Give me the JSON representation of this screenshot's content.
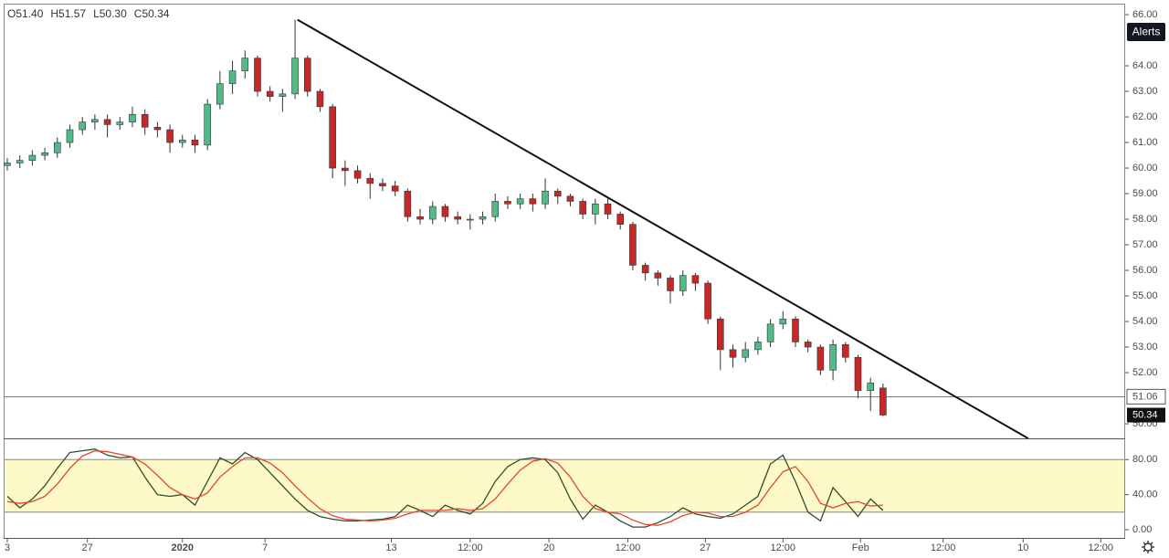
{
  "chart_data": {
    "type": "candlestick",
    "header": [
      "O51.40",
      "H51.57",
      "L50.30",
      "C50.34"
    ],
    "button": "Alerts",
    "up_color": "#53b987",
    "down_color": "#c62828",
    "open": [
      60.1,
      60.2,
      60.3,
      60.5,
      60.6,
      61.0,
      61.5,
      61.8,
      61.9,
      61.7,
      61.8,
      62.1,
      61.6,
      61.5,
      61.0,
      61.1,
      60.9,
      62.5,
      63.3,
      63.8,
      64.3,
      63.0,
      62.8,
      62.9,
      64.3,
      63.0,
      62.4,
      60.0,
      59.9,
      59.6,
      59.4,
      59.3,
      59.1,
      58.1,
      58.0,
      58.5,
      58.1,
      58.0,
      58.0,
      58.1,
      58.7,
      58.6,
      58.8,
      58.6,
      59.1,
      58.9,
      58.7,
      58.2,
      58.6,
      58.2,
      57.8,
      56.2,
      55.9,
      55.7,
      55.2,
      55.8,
      55.5,
      54.1,
      52.9,
      52.6,
      52.9,
      53.2,
      53.9,
      54.1,
      53.2,
      53.0,
      52.1,
      53.1,
      52.6,
      51.3,
      51.4
    ],
    "high": [
      60.4,
      60.5,
      60.7,
      60.8,
      61.2,
      61.7,
      62.0,
      62.1,
      62.1,
      62.0,
      62.4,
      62.3,
      61.8,
      61.7,
      61.3,
      61.3,
      62.7,
      63.8,
      64.2,
      64.6,
      64.4,
      63.2,
      63.1,
      65.8,
      64.4,
      63.1,
      62.5,
      60.3,
      60.1,
      59.8,
      59.6,
      59.5,
      59.2,
      58.4,
      58.7,
      58.6,
      58.3,
      58.2,
      58.3,
      59.0,
      58.9,
      59.0,
      59.0,
      59.6,
      59.2,
      59.0,
      58.8,
      58.8,
      58.8,
      58.3,
      57.9,
      56.3,
      56.0,
      55.8,
      56.0,
      55.9,
      55.6,
      54.2,
      53.1,
      53.2,
      53.4,
      54.1,
      54.4,
      54.2,
      53.3,
      53.1,
      53.3,
      53.2,
      52.7,
      51.8,
      51.57
    ],
    "low": [
      59.9,
      60.0,
      60.1,
      60.3,
      60.4,
      60.8,
      61.3,
      61.5,
      61.2,
      61.5,
      61.6,
      61.3,
      61.2,
      60.6,
      60.8,
      60.6,
      60.7,
      62.3,
      62.9,
      63.5,
      62.8,
      62.6,
      62.2,
      62.7,
      62.8,
      62.2,
      59.6,
      59.3,
      59.4,
      58.8,
      59.1,
      58.9,
      57.9,
      57.8,
      57.8,
      57.9,
      57.8,
      57.6,
      57.8,
      57.9,
      58.4,
      58.4,
      58.3,
      58.4,
      58.6,
      58.5,
      58.0,
      57.8,
      58.0,
      57.6,
      56.0,
      55.6,
      55.4,
      54.7,
      55.0,
      55.2,
      53.9,
      52.1,
      52.2,
      52.4,
      52.7,
      53.0,
      53.7,
      53.0,
      52.8,
      51.9,
      51.7,
      52.4,
      51.0,
      50.5,
      50.3
    ],
    "close": [
      60.2,
      60.3,
      60.5,
      60.6,
      61.0,
      61.5,
      61.8,
      61.9,
      61.7,
      61.8,
      62.1,
      61.6,
      61.5,
      61.0,
      61.1,
      60.9,
      62.5,
      63.3,
      63.8,
      64.3,
      63.0,
      62.8,
      62.9,
      64.3,
      63.0,
      62.4,
      60.0,
      59.9,
      59.6,
      59.4,
      59.3,
      59.1,
      58.1,
      58.0,
      58.5,
      58.1,
      58.0,
      58.0,
      58.1,
      58.7,
      58.6,
      58.8,
      58.6,
      59.1,
      58.9,
      58.7,
      58.2,
      58.6,
      58.2,
      57.8,
      56.2,
      55.9,
      55.7,
      55.2,
      55.8,
      55.5,
      54.1,
      52.9,
      52.6,
      52.9,
      53.2,
      53.9,
      54.1,
      53.2,
      53.0,
      52.1,
      53.1,
      52.6,
      51.3,
      51.6,
      50.34
    ],
    "xlim": [
      0,
      89.5
    ],
    "xticks": [
      {
        "value": 0,
        "label": "3"
      },
      {
        "value": 6.4,
        "label": "27"
      },
      {
        "value": 14,
        "label": "2020"
      },
      {
        "value": 20.6,
        "label": "7"
      },
      {
        "value": 30.7,
        "label": "13"
      },
      {
        "value": 37,
        "label": "12:00"
      },
      {
        "value": 43.3,
        "label": "20"
      },
      {
        "value": 49.6,
        "label": "12:00"
      },
      {
        "value": 55.8,
        "label": "27"
      },
      {
        "value": 62,
        "label": "12:00"
      },
      {
        "value": 68.2,
        "label": "Feb"
      },
      {
        "value": 74.8,
        "label": "12:00"
      },
      {
        "value": 81.2,
        "label": "10"
      },
      {
        "value": 87.4,
        "label": "12:00"
      }
    ],
    "ylim": [
      49.43,
      66.43
    ],
    "yticks": [
      {
        "value": 66,
        "label": "66.00"
      },
      {
        "value": 64,
        "label": "64.00"
      },
      {
        "value": 63,
        "label": "63.00"
      },
      {
        "value": 62,
        "label": "62.00"
      },
      {
        "value": 61,
        "label": "61.00"
      },
      {
        "value": 60,
        "label": "60.00"
      },
      {
        "value": 59,
        "label": "59.00"
      },
      {
        "value": 58,
        "label": "58.00"
      },
      {
        "value": 57,
        "label": "57.00"
      },
      {
        "value": 56,
        "label": "56.00"
      },
      {
        "value": 55,
        "label": "55.00"
      },
      {
        "value": 54,
        "label": "54.00"
      },
      {
        "value": 53,
        "label": "53.00"
      },
      {
        "value": 52,
        "label": "52.00"
      },
      {
        "value": 50,
        "label": "50.00"
      }
    ],
    "hline": 51.06,
    "trendline": {
      "x": [
        23.2,
        81.6
      ],
      "y": [
        65.8,
        49.43
      ],
      "color": "#111111"
    },
    "oscillator": {
      "ylim": [
        0,
        100
      ],
      "yticks": [
        {
          "value": 80,
          "label": "80.00"
        },
        {
          "value": 40,
          "label": "40.00"
        },
        {
          "value": 0,
          "label": "0.00"
        }
      ],
      "band": [
        20,
        80
      ],
      "band_color": "#fdf9c8",
      "series": [
        {
          "color": "#2f4f2f",
          "values": [
            38,
            25,
            35,
            50,
            70,
            88,
            90,
            92,
            85,
            82,
            83,
            60,
            40,
            38,
            40,
            28,
            55,
            82,
            75,
            88,
            80,
            65,
            50,
            35,
            22,
            15,
            12,
            10,
            10,
            11,
            12,
            15,
            28,
            22,
            15,
            28,
            22,
            18,
            30,
            55,
            72,
            80,
            82,
            80,
            65,
            35,
            12,
            28,
            20,
            10,
            3,
            3,
            8,
            15,
            25,
            18,
            15,
            13,
            18,
            28,
            38,
            75,
            85,
            55,
            20,
            10,
            48,
            32,
            15,
            35,
            22
          ]
        },
        {
          "color": "#e8452c",
          "values": [
            32,
            30,
            32,
            38,
            52,
            70,
            84,
            90,
            89,
            86,
            83,
            75,
            62,
            48,
            40,
            35,
            42,
            60,
            72,
            82,
            82,
            76,
            65,
            50,
            36,
            24,
            16,
            12,
            11,
            10,
            11,
            13,
            18,
            22,
            22,
            22,
            24,
            22,
            24,
            35,
            52,
            68,
            78,
            81,
            76,
            60,
            38,
            24,
            20,
            18,
            11,
            6,
            5,
            9,
            16,
            20,
            19,
            15,
            15,
            20,
            28,
            48,
            66,
            72,
            55,
            30,
            25,
            30,
            32,
            27,
            28
          ]
        }
      ]
    }
  }
}
